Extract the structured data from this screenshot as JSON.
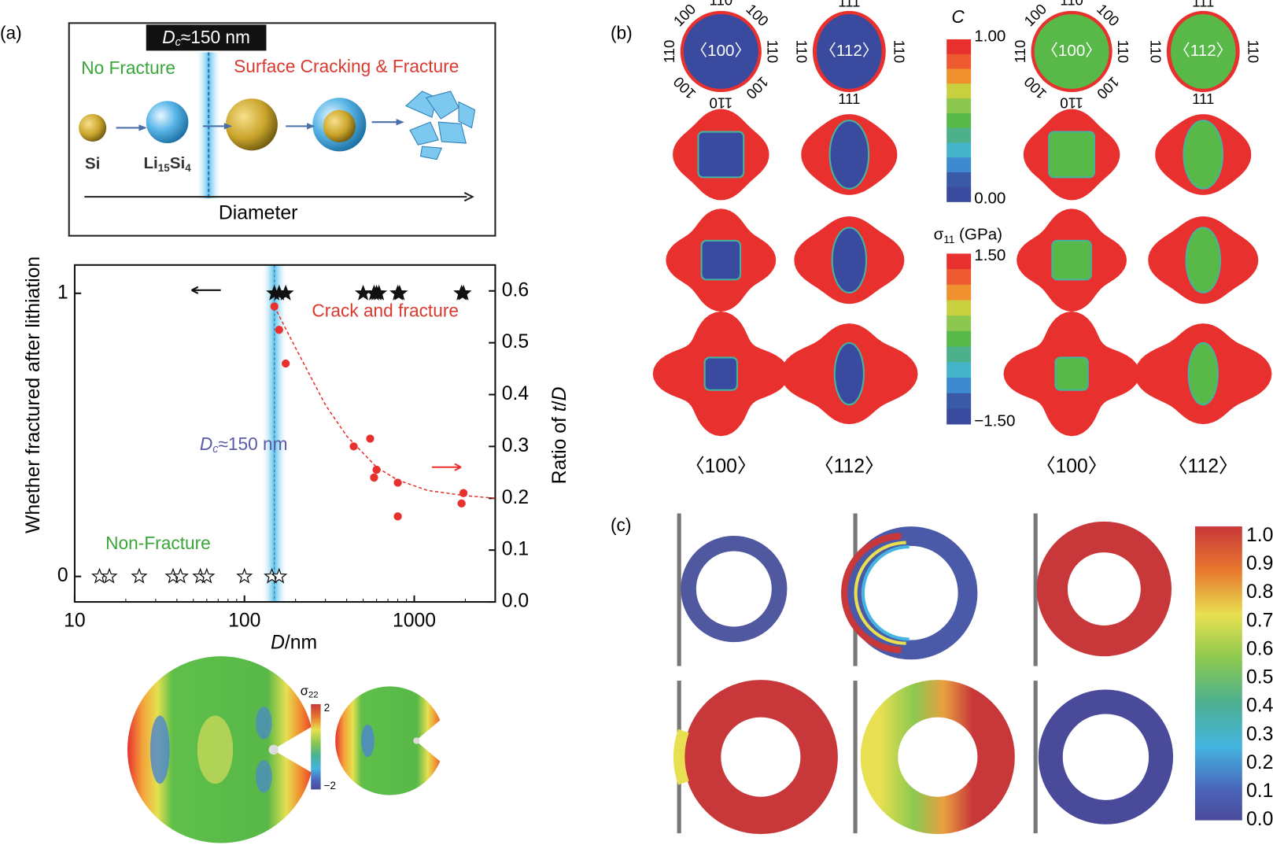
{
  "panel_labels": {
    "a": "(a)",
    "b": "(b)",
    "c": "(c)"
  },
  "schematic": {
    "critical": {
      "symbol": "D",
      "subscript": "c",
      "text": "≈150 nm"
    },
    "no_fracture": "No Fracture",
    "fracture": "Surface Cracking & Fracture",
    "si": "Si",
    "lithiated": [
      "Li",
      "15",
      "Si",
      "4"
    ],
    "axis": "Diameter"
  },
  "chart_data": {
    "type": "scatter",
    "xscale": "log",
    "xlabel": [
      "D",
      "/nm"
    ],
    "ylabel": "Whether fractured after lithiation",
    "y2label": [
      "Ratio of ",
      "t",
      "/",
      "D"
    ],
    "xlim": [
      10,
      3000
    ],
    "xticks": [
      10,
      100,
      1000
    ],
    "ylim": [
      -0.09,
      1.1
    ],
    "yticks": [
      0,
      1
    ],
    "y2lim": [
      0,
      0.65
    ],
    "y2ticks": [
      {
        "value": 0,
        "label": "0.0"
      },
      0.1,
      0.2,
      0.3,
      0.4,
      0.5,
      0.6
    ],
    "critical_diameter": 150,
    "annotations": {
      "fracture": "Crack and fracture",
      "non_fracture": "Non-Fracture",
      "critical": [
        "D",
        "c",
        "≈150 nm"
      ]
    },
    "series": [
      {
        "marker": "star-filled",
        "color": "#111111",
        "x": [
          150,
          160,
          175,
          500,
          580,
          600,
          620,
          800,
          820,
          1900,
          1950
        ],
        "values": [
          1,
          1,
          1,
          1,
          1,
          1,
          1,
          1,
          1,
          1,
          1
        ]
      },
      {
        "marker": "star-open",
        "color": "#111111",
        "x": [
          14,
          16,
          24,
          38,
          42,
          55,
          60,
          100,
          145,
          160
        ],
        "values": [
          0,
          0,
          0,
          0,
          0,
          0,
          0,
          0,
          0,
          0
        ]
      },
      {
        "marker": "dot",
        "color": "#e8312f",
        "axis": "y2",
        "x": [
          150,
          160,
          175,
          440,
          550,
          580,
          600,
          800,
          800,
          1900,
          1950
        ],
        "values": [
          0.57,
          0.525,
          0.46,
          0.3,
          0.315,
          0.24,
          0.255,
          0.23,
          0.165,
          0.19,
          0.21
        ]
      },
      {
        "marker": "dashed-line",
        "color": "#e8312f",
        "axis": "y2",
        "x": [
          150,
          200,
          300,
          400,
          600,
          800,
          1200,
          2000,
          3000
        ],
        "values": [
          0.57,
          0.49,
          0.38,
          0.32,
          0.26,
          0.235,
          0.215,
          0.205,
          0.2
        ]
      }
    ]
  },
  "stress_maps": {
    "symbol": "σ",
    "subscript": "22",
    "max": "2",
    "min": "−2"
  },
  "panel_b": {
    "labels_100": [
      "110",
      "100",
      "110",
      "100",
      "110",
      "100",
      "110",
      "100"
    ],
    "labels_112": [
      "111",
      "110",
      "111",
      "110"
    ],
    "directions": [
      "〈100〉",
      "〈112〉"
    ],
    "concentration": {
      "symbol": "C",
      "max": "1.00",
      "min": "0.00"
    },
    "stress": {
      "symbol": "σ",
      "subscript": "11",
      "unit": " (GPa)",
      "max": "1.50",
      "min": "−1.50"
    }
  },
  "panel_c": {
    "colorbar": [
      "1.00",
      "0.90",
      "0.80",
      "0.70",
      "0.60",
      "0.50",
      "0.40",
      "0.30",
      "0.20",
      "0.10",
      "0.00"
    ]
  }
}
